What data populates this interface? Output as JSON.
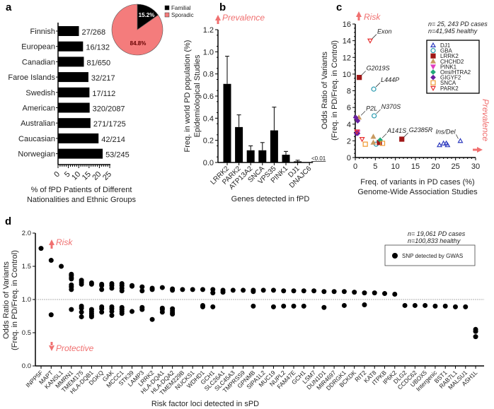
{
  "panels": {
    "a": "a",
    "b": "b",
    "c": "c",
    "d": "d"
  },
  "chart_data": [
    {
      "id": "a",
      "type": "bar",
      "orientation": "horizontal",
      "categories": [
        "Finnish",
        "European",
        "Canadian",
        "Faroe Islands",
        "Swedish",
        "American",
        "Australian",
        "Caucasian",
        "Norwegian"
      ],
      "values": [
        10.1,
        12.1,
        12.5,
        14.7,
        15.2,
        15.3,
        15.7,
        19.6,
        21.6
      ],
      "data_labels": [
        "27/268",
        "16/132",
        "81/650",
        "32/217",
        "17/112",
        "320/2087",
        "271/1725",
        "42/214",
        "53/245"
      ],
      "xlim": [
        0,
        25
      ],
      "xticks": [
        "0",
        "5",
        "10",
        "15",
        "20",
        "25"
      ],
      "xlabel": [
        "% of fPD Patients of Different",
        "Nationalities and Ethnic Groups"
      ],
      "inset_pie": {
        "type": "pie",
        "labels": [
          "Familial",
          "Sporadic"
        ],
        "values": [
          15.2,
          84.8
        ],
        "value_labels": [
          "15.2%",
          "84.8%"
        ],
        "colors": [
          "#000000",
          "#f47c7c"
        ]
      }
    },
    {
      "id": "b",
      "type": "bar",
      "categories": [
        "LRRK2",
        "PARK2",
        "ATP13A2",
        "SNCA",
        "VPS35",
        "PINK1",
        "DJ1",
        "DNAJC6"
      ],
      "values": [
        0.71,
        0.32,
        0.11,
        0.11,
        0.29,
        0.07,
        0.01,
        0.003
      ],
      "errors": [
        0.25,
        0.11,
        0.04,
        0.07,
        0.21,
        0.03,
        0.01,
        0
      ],
      "annotation": "<0.01",
      "ylim": [
        0,
        1.2
      ],
      "yticks": [
        "0.0",
        "0.2",
        "0.4",
        "0.6",
        "0.8",
        "1.0",
        "1.2"
      ],
      "ylabel": [
        "Freq. in world  PD population (%)",
        "Epidemiological Studies"
      ],
      "xlabel": "Genes detected in fPD",
      "arrow_label": "Prevalence"
    },
    {
      "id": "c",
      "type": "scatter",
      "xlim": [
        0,
        30
      ],
      "ylim": [
        0,
        16
      ],
      "xticks": [
        "0",
        "5",
        "10",
        "15",
        "20",
        "25",
        "30"
      ],
      "yticks": [
        "0",
        "2",
        "4",
        "6",
        "8",
        "10",
        "12",
        "14",
        "16"
      ],
      "xlabel": [
        "Freq. of variants in PD cases (%)",
        "Genome-Wide Association Studies"
      ],
      "ylabel": [
        "Odds Ratio of Variants",
        "(Freq. in  PD/Freq. in Control)"
      ],
      "risk_label": "Risk",
      "prevalence_label": "Prevalence",
      "note": [
        "n= 25, 243 PD cases",
        "n=41,945 healthy"
      ],
      "series": [
        {
          "name": "DJ1",
          "marker": "tri-up-open",
          "color": "#2e3bbf",
          "points": [
            [
              21,
              1.5
            ],
            [
              22,
              1.7
            ],
            [
              22.7,
              1.7
            ],
            [
              23,
              1.5
            ],
            [
              26.2,
              2.0
            ]
          ]
        },
        {
          "name": "GBA",
          "marker": "circle-open",
          "color": "#2b9bb0",
          "points": [
            [
              4.6,
              8.2
            ],
            [
              4.7,
              5.0
            ],
            [
              5.2,
              1.6
            ]
          ]
        },
        {
          "name": "LRRK2",
          "marker": "square",
          "color": "#a01818",
          "points": [
            [
              1,
              9.6
            ],
            [
              6,
              1.8
            ],
            [
              11.6,
              2.2
            ]
          ]
        },
        {
          "name": "CHCHD2",
          "marker": "tri-up",
          "color": "#c89a60",
          "points": [
            [
              0.9,
              4.8
            ],
            [
              4.5,
              2.5
            ],
            [
              4.5,
              1.8
            ]
          ]
        },
        {
          "name": "PINK1",
          "marker": "tri-down",
          "color": "#e040c0",
          "points": [
            [
              0.5,
              3.1
            ],
            [
              0.6,
              3.0
            ]
          ]
        },
        {
          "name": "Omi/HTRA2",
          "marker": "diamond",
          "color": "#20a878",
          "points": [
            [
              6.2,
              2.1
            ]
          ]
        },
        {
          "name": "GIGYF2",
          "marker": "diamond",
          "color": "#6a1fa0",
          "points": [
            [
              0.1,
              4.8
            ],
            [
              0.6,
              4.4
            ],
            [
              0.3,
              2.9
            ],
            [
              0.6,
              2.9
            ]
          ]
        },
        {
          "name": "SNCA",
          "marker": "square-open",
          "color": "#f09a30",
          "points": [
            [
              2.5,
              1.6
            ],
            [
              6.8,
              1.7
            ]
          ]
        },
        {
          "name": "PARK2",
          "marker": "tri-down-open",
          "color": "#e83030",
          "points": [
            [
              3.7,
              14
            ],
            [
              1.7,
              2.2
            ],
            [
              0.4,
              3.1
            ]
          ]
        }
      ],
      "annotations": [
        {
          "text": "Exon",
          "x": 3.7,
          "y": 14
        },
        {
          "text": "G2019S",
          "x": 1,
          "y": 9.6
        },
        {
          "text": "L444P",
          "x": 4.6,
          "y": 8.2
        },
        {
          "text": "P2L",
          "x": 0.9,
          "y": 4.8
        },
        {
          "text": "N370S",
          "x": 4.7,
          "y": 5.0
        },
        {
          "text": "A141S",
          "x": 6.2,
          "y": 2.1
        },
        {
          "text": "G2385R",
          "x": 11.6,
          "y": 2.2
        },
        {
          "text": "Ins/Del",
          "x": 26.2,
          "y": 2.0
        }
      ]
    },
    {
      "id": "d",
      "type": "scatter",
      "ylim": [
        0,
        2
      ],
      "yticks": [
        "0.0",
        "0.5",
        "1.0",
        "1.5",
        "2.0"
      ],
      "reference_line": 1.0,
      "xlabel": "Risk factor loci detected in sPD",
      "ylabel": [
        "Odds Ratio of Variants",
        "(Freq. in  PD/Freq. in Control)"
      ],
      "risk_label": "Risk",
      "protective_label": "Protective",
      "note": [
        "n= 19,061 PD cases",
        "n=100,833 healthy"
      ],
      "legend": "SNP detected by GWAS",
      "categories": [
        "INPP5F",
        "MAPT",
        "KANSL1",
        "MMRN1",
        "TMEM175",
        "HLA-DQB1",
        "DGKQ",
        "GAK",
        "MCCC1",
        "STK39",
        "LAMP3",
        "LRRK2",
        "HLA-DQA1",
        "HLA-DQA2",
        "TMEM229B",
        "NUCKS1",
        "WDHD1",
        "GCH1",
        "SLC26A1",
        "SLC45A3",
        "TMPRSS9",
        "GPNMB",
        "SIPA1L2",
        "MUC19",
        "NUPL2",
        "FAM47E",
        "GCH1",
        "LSM7",
        "DUN1D1",
        "MIR4697",
        "DDRGK1",
        "BCKDK",
        "RIT2",
        "KAT8",
        "ITPKB",
        "IP6K2",
        "DLG2",
        "CCDC62",
        "UBOX5",
        "Intergenic",
        "BST1",
        "RAB7L1",
        "MALSU1",
        "ASH1L"
      ],
      "values": [
        [
          1.77
        ],
        [
          1.59,
          0.77
        ],
        [
          1.5
        ],
        [
          1.38,
          1.36,
          1.33,
          1.31,
          1.22,
          1.19,
          1.15,
          0.85
        ],
        [
          1.29,
          1.26,
          1.23,
          0.9,
          0.87,
          0.81,
          0.74
        ],
        [
          1.25,
          1.23,
          0.85,
          0.82,
          0.79,
          0.76,
          0.74
        ],
        [
          1.23,
          1.21,
          1.15,
          0.89,
          0.86,
          0.81
        ],
        [
          1.24,
          1.21,
          1.17,
          0.89,
          0.86,
          0.82,
          0.76
        ],
        [
          1.24,
          1.21,
          1.17,
          1.13,
          0.88,
          0.85,
          0.82,
          0.79
        ],
        [
          1.21,
          1.2,
          0.82
        ],
        [
          1.19,
          1.13,
          0.88,
          0.85
        ],
        [
          1.17,
          1.15,
          0.7
        ],
        [
          1.18,
          0.87,
          0.85,
          0.81
        ],
        [
          1.16,
          1.14,
          0.86,
          0.83,
          0.8,
          0.78
        ],
        [
          1.15
        ],
        [
          1.15
        ],
        [
          1.15,
          0.91,
          0.89
        ],
        [
          1.15,
          1.1,
          0.89
        ],
        [
          1.14,
          1.11
        ],
        [
          1.14
        ],
        [
          1.14
        ],
        [
          1.14,
          1.12,
          0.9
        ],
        [
          1.14
        ],
        [
          1.14,
          0.89
        ],
        [
          1.13,
          0.9
        ],
        [
          1.13,
          0.9
        ],
        [
          1.13,
          0.9
        ],
        [
          1.13
        ],
        [
          1.12,
          0.88
        ],
        [
          1.12
        ],
        [
          1.12,
          0.91
        ],
        [
          1.11
        ],
        [
          1.1,
          0.92
        ],
        [
          1.1
        ],
        [
          1.09
        ],
        [
          1.08
        ],
        [
          0.91
        ],
        [
          0.91
        ],
        [
          0.91
        ],
        [
          0.9
        ],
        [
          0.9
        ],
        [
          0.89
        ],
        [
          0.89
        ],
        [
          0.55,
          0.52,
          0.44
        ]
      ]
    }
  ]
}
